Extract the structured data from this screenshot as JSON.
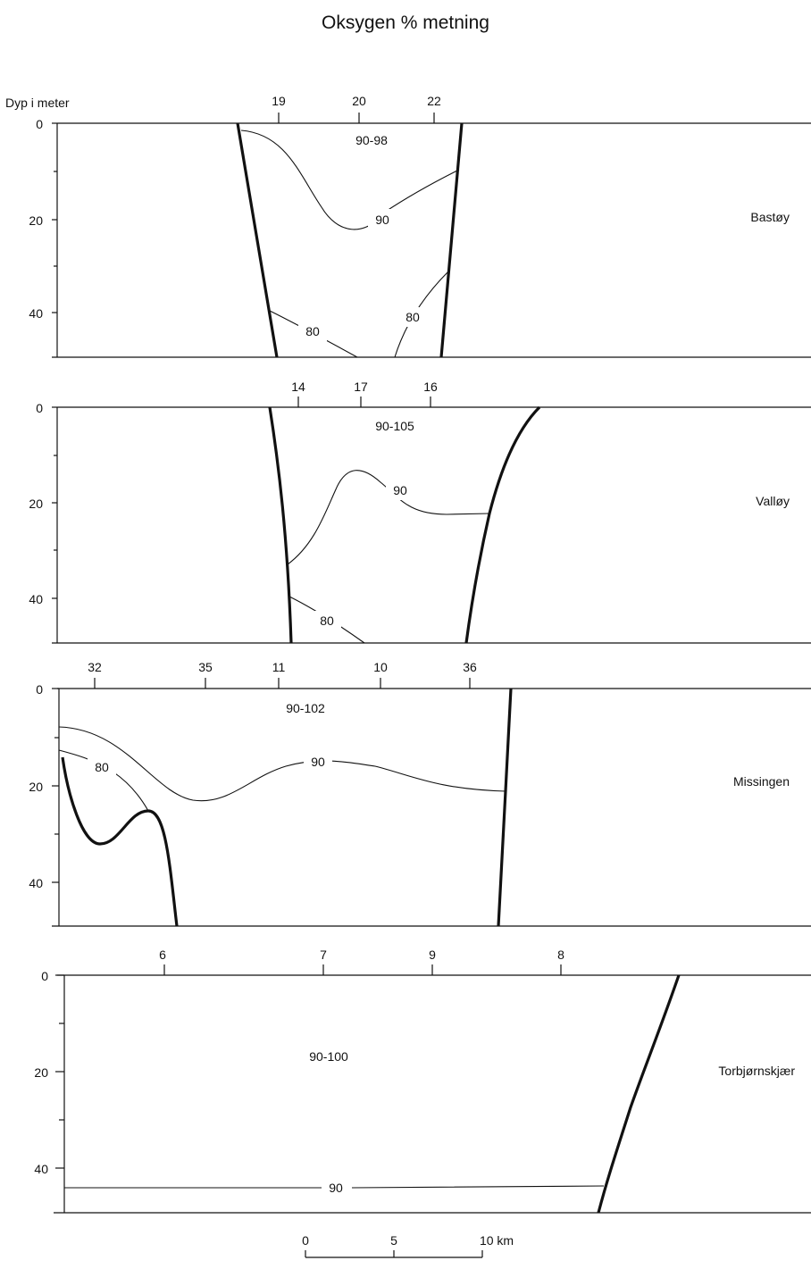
{
  "title": "Oksygen % metning",
  "scale_bar": {
    "labels": [
      "0",
      "5",
      "10 km"
    ]
  },
  "chart_data": [
    {
      "type": "contour-section",
      "site": "Bastøy",
      "ylabel": "Dyp i meter",
      "ylim": [
        0,
        50
      ],
      "yticks": [
        "0",
        "20",
        "40"
      ],
      "stations": [
        "19",
        "20",
        "22"
      ],
      "range_label": "90-98",
      "contour_labels": [
        "90",
        "80",
        "80"
      ]
    },
    {
      "type": "contour-section",
      "site": "Valløy",
      "ylim": [
        0,
        50
      ],
      "yticks": [
        "0",
        "20",
        "40"
      ],
      "stations": [
        "14",
        "17",
        "16"
      ],
      "range_label": "90-105",
      "contour_labels": [
        "90",
        "80"
      ]
    },
    {
      "type": "contour-section",
      "site": "Missingen",
      "ylim": [
        0,
        50
      ],
      "yticks": [
        "0",
        "20",
        "40"
      ],
      "stations": [
        "32",
        "35",
        "11",
        "10",
        "36"
      ],
      "range_label": "90-102",
      "contour_labels": [
        "90",
        "80"
      ]
    },
    {
      "type": "contour-section",
      "site": "Torbjørnskjær",
      "ylim": [
        0,
        50
      ],
      "yticks": [
        "0",
        "20",
        "40"
      ],
      "stations": [
        "6",
        "7",
        "9",
        "8"
      ],
      "range_label": "90-100",
      "contour_labels": [
        "90"
      ]
    }
  ]
}
